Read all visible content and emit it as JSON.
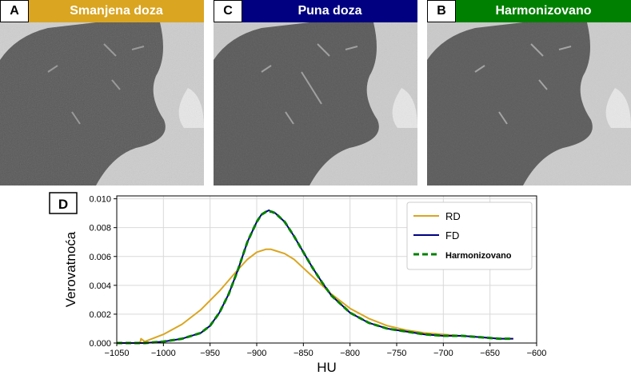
{
  "panels": [
    {
      "letter": "A",
      "title": "Smanjena doza",
      "color": "#DAA520"
    },
    {
      "letter": "C",
      "title": "Puna doza",
      "color": "#000080"
    },
    {
      "letter": "B",
      "title": "Harmonizovano",
      "color": "#008000"
    }
  ],
  "chart_letter": "D",
  "chart_data": {
    "type": "line",
    "xlabel": "HU",
    "ylabel": "Verovatnoća",
    "xlim": [
      -1050,
      -600
    ],
    "ylim": [
      0,
      0.0102
    ],
    "xticks": [
      -1050,
      -1000,
      -950,
      -900,
      -850,
      -800,
      -750,
      -700,
      -650,
      -600
    ],
    "xtick_labels": [
      "−1050",
      "−1000",
      "−950",
      "−900",
      "−850",
      "−800",
      "−750",
      "−700",
      "−650",
      "−600"
    ],
    "yticks": [
      0,
      0.002,
      0.004,
      0.006,
      0.008,
      0.01
    ],
    "ytick_labels": [
      "0.000",
      "0.002",
      "0.004",
      "0.006",
      "0.008",
      "0.010"
    ],
    "grid": true,
    "legend_position": "top-right",
    "series": [
      {
        "name": "RD",
        "color": "#DAA520",
        "style": "solid",
        "x": [
          -1050,
          -1030,
          -1025,
          -1024,
          -1020,
          -1000,
          -980,
          -960,
          -940,
          -920,
          -910,
          -900,
          -890,
          -885,
          -880,
          -870,
          -860,
          -850,
          -840,
          -820,
          -800,
          -780,
          -760,
          -740,
          -720,
          -700,
          -680,
          -660,
          -640,
          -625
        ],
        "y": [
          0.0,
          0.0,
          0.0,
          0.0003,
          0.0001,
          0.0006,
          0.0013,
          0.0023,
          0.0036,
          0.0051,
          0.0058,
          0.0063,
          0.0065,
          0.0065,
          0.0064,
          0.0062,
          0.0058,
          0.0052,
          0.0046,
          0.0034,
          0.0024,
          0.0017,
          0.0012,
          0.0009,
          0.0007,
          0.0006,
          0.0005,
          0.0004,
          0.0003,
          0.0003
        ]
      },
      {
        "name": "FD",
        "color": "#000080",
        "style": "solid",
        "x": [
          -1050,
          -1020,
          -1000,
          -980,
          -960,
          -950,
          -940,
          -930,
          -920,
          -910,
          -900,
          -895,
          -890,
          -887,
          -884,
          -880,
          -870,
          -860,
          -850,
          -840,
          -830,
          -820,
          -800,
          -780,
          -760,
          -740,
          -720,
          -700,
          -680,
          -660,
          -640,
          -625
        ],
        "y": [
          0.0,
          0.0,
          0.0001,
          0.0003,
          0.0007,
          0.0012,
          0.0021,
          0.0034,
          0.0051,
          0.007,
          0.0084,
          0.0089,
          0.0091,
          0.0092,
          0.0091,
          0.009,
          0.0084,
          0.0074,
          0.0063,
          0.0052,
          0.0042,
          0.0033,
          0.0021,
          0.0014,
          0.001,
          0.0008,
          0.0006,
          0.0005,
          0.0005,
          0.0004,
          0.0003,
          0.0003
        ]
      },
      {
        "name": "Harmonizovano",
        "color": "#008000",
        "style": "dashed",
        "x": [
          -1050,
          -1020,
          -1000,
          -980,
          -960,
          -950,
          -940,
          -930,
          -920,
          -910,
          -900,
          -895,
          -890,
          -887,
          -884,
          -880,
          -870,
          -860,
          -850,
          -840,
          -830,
          -820,
          -800,
          -780,
          -760,
          -740,
          -720,
          -700,
          -680,
          -660,
          -640,
          -625
        ],
        "y": [
          0.0,
          0.0,
          0.0001,
          0.0003,
          0.0007,
          0.0012,
          0.0021,
          0.0034,
          0.0051,
          0.007,
          0.0084,
          0.0089,
          0.0091,
          0.0091,
          0.0091,
          0.009,
          0.0084,
          0.0074,
          0.0063,
          0.0052,
          0.0042,
          0.0033,
          0.0021,
          0.0014,
          0.001,
          0.0008,
          0.0006,
          0.0005,
          0.0005,
          0.0004,
          0.0003,
          0.0003
        ]
      }
    ]
  }
}
